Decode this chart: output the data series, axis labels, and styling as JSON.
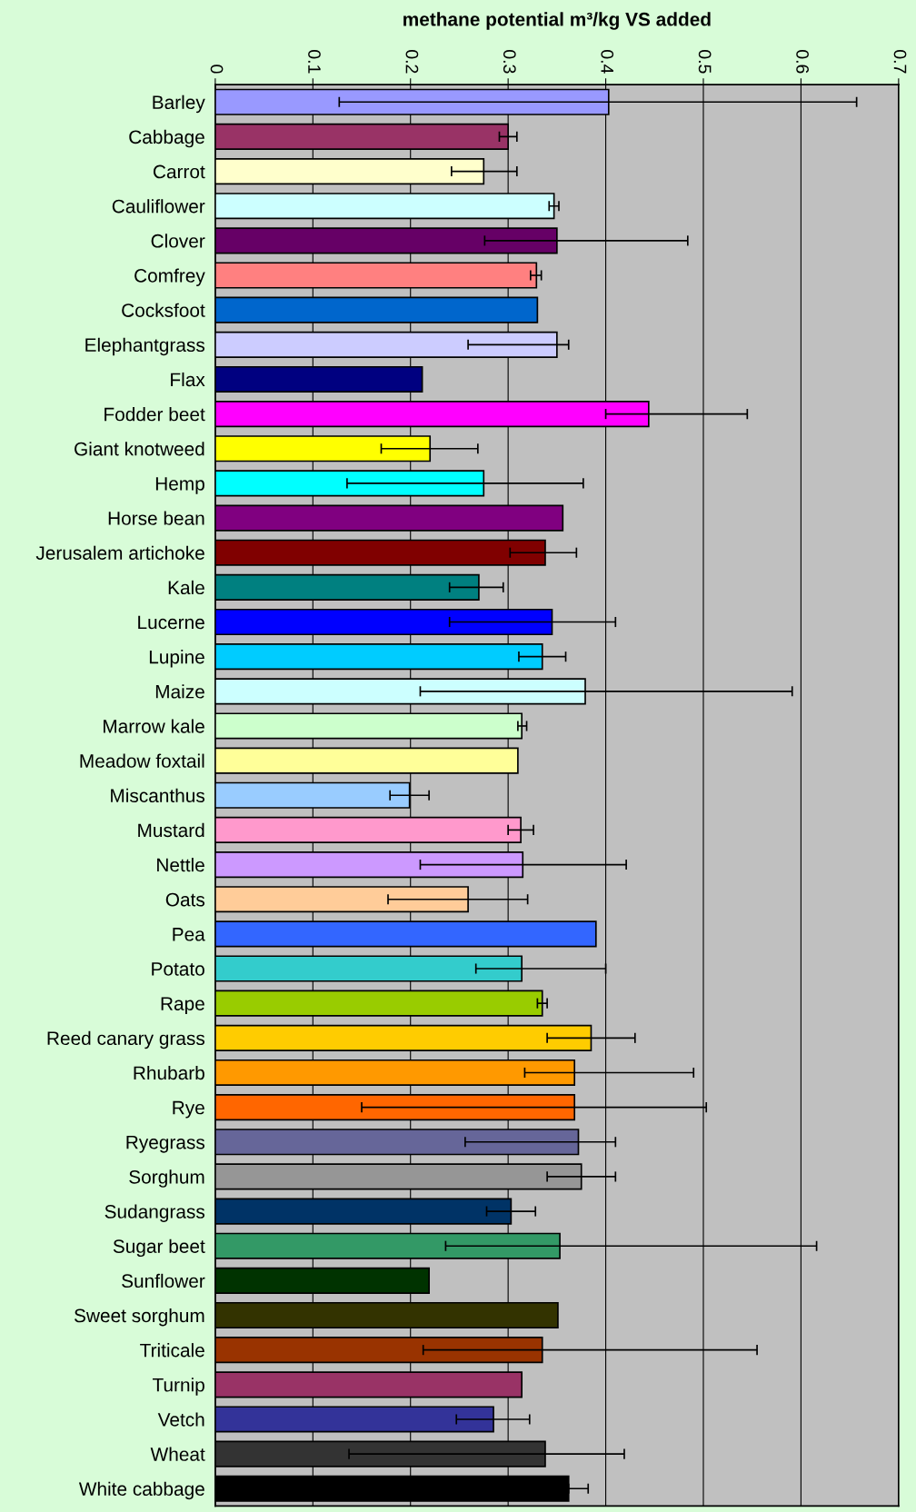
{
  "chart_data": {
    "type": "bar",
    "orientation": "horizontal",
    "title": "methane potential m³/kg VS added",
    "categories": [
      "Barley",
      "Cabbage",
      "Carrot",
      "Cauliflower",
      "Clover",
      "Comfrey",
      "Cocksfoot",
      "Elephantgrass",
      "Flax",
      "Fodder beet",
      "Giant knotweed",
      "Hemp",
      "Horse bean",
      "Jerusalem artichoke",
      "Kale",
      "Lucerne",
      "Lupine",
      "Maize",
      "Marrow kale",
      "Meadow foxtail",
      "Miscanthus",
      "Mustard",
      "Nettle",
      "Oats",
      "Pea",
      "Potato",
      "Rape",
      "Reed canary grass",
      "Rhubarb",
      "Rye",
      "Ryegrass",
      "Sorghum",
      "Sudangrass",
      "Sugar beet",
      "Sunflower",
      "Sweet sorghum",
      "Triticale",
      "Turnip",
      "Vetch",
      "Wheat",
      "White cabbage"
    ],
    "values": [
      0.403,
      0.3,
      0.275,
      0.347,
      0.35,
      0.329,
      0.33,
      0.35,
      0.212,
      0.444,
      0.22,
      0.275,
      0.356,
      0.338,
      0.27,
      0.345,
      0.335,
      0.379,
      0.314,
      0.31,
      0.199,
      0.313,
      0.315,
      0.259,
      0.39,
      0.314,
      0.335,
      0.385,
      0.368,
      0.368,
      0.372,
      0.375,
      0.303,
      0.353,
      0.219,
      0.351,
      0.335,
      0.314,
      0.285,
      0.338,
      0.362
    ],
    "errors": [
      [
        0.127,
        0.657
      ],
      [
        0.291,
        0.309
      ],
      [
        0.242,
        0.309
      ],
      [
        0.342,
        0.352
      ],
      [
        0.276,
        0.484
      ],
      [
        0.323,
        0.334
      ],
      null,
      [
        0.259,
        0.362
      ],
      null,
      [
        0.4,
        0.545
      ],
      [
        0.17,
        0.269
      ],
      [
        0.135,
        0.377
      ],
      null,
      [
        0.302,
        0.37
      ],
      [
        0.24,
        0.295
      ],
      [
        0.24,
        0.41
      ],
      [
        0.311,
        0.359
      ],
      [
        0.21,
        0.591
      ],
      [
        0.31,
        0.319
      ],
      null,
      [
        0.179,
        0.219
      ],
      [
        0.3,
        0.326
      ],
      [
        0.21,
        0.421
      ],
      [
        0.177,
        0.32
      ],
      null,
      [
        0.267,
        0.4
      ],
      [
        0.33,
        0.34
      ],
      [
        0.34,
        0.43
      ],
      [
        0.317,
        0.49
      ],
      [
        0.15,
        0.503
      ],
      [
        0.256,
        0.41
      ],
      [
        0.34,
        0.41
      ],
      [
        0.278,
        0.328
      ],
      [
        0.236,
        0.616
      ],
      null,
      null,
      [
        0.213,
        0.555
      ],
      null,
      [
        0.247,
        0.322
      ],
      [
        0.137,
        0.419
      ],
      [
        0.362,
        0.382
      ]
    ],
    "colors": [
      "#9999ff",
      "#993366",
      "#ffffcc",
      "#ccffff",
      "#660066",
      "#ff8080",
      "#0066cc",
      "#ccccff",
      "#000080",
      "#ff00ff",
      "#ffff00",
      "#00ffff",
      "#800080",
      "#800000",
      "#008080",
      "#0000ff",
      "#00ccff",
      "#ccffff",
      "#ccffcc",
      "#ffff99",
      "#99ccff",
      "#ff99cc",
      "#cc99ff",
      "#ffcc99",
      "#3366ff",
      "#33cccc",
      "#99cc00",
      "#ffcc00",
      "#ff9900",
      "#ff6600",
      "#666699",
      "#969696",
      "#003366",
      "#339966",
      "#003300",
      "#333300",
      "#993300",
      "#993366",
      "#333399",
      "#333333",
      "#000000"
    ],
    "xlim": [
      0,
      0.7
    ],
    "xticks": [
      0,
      0.1,
      0.2,
      0.3,
      0.4,
      0.5,
      0.6,
      0.7
    ],
    "grid": "x",
    "legend": false
  }
}
